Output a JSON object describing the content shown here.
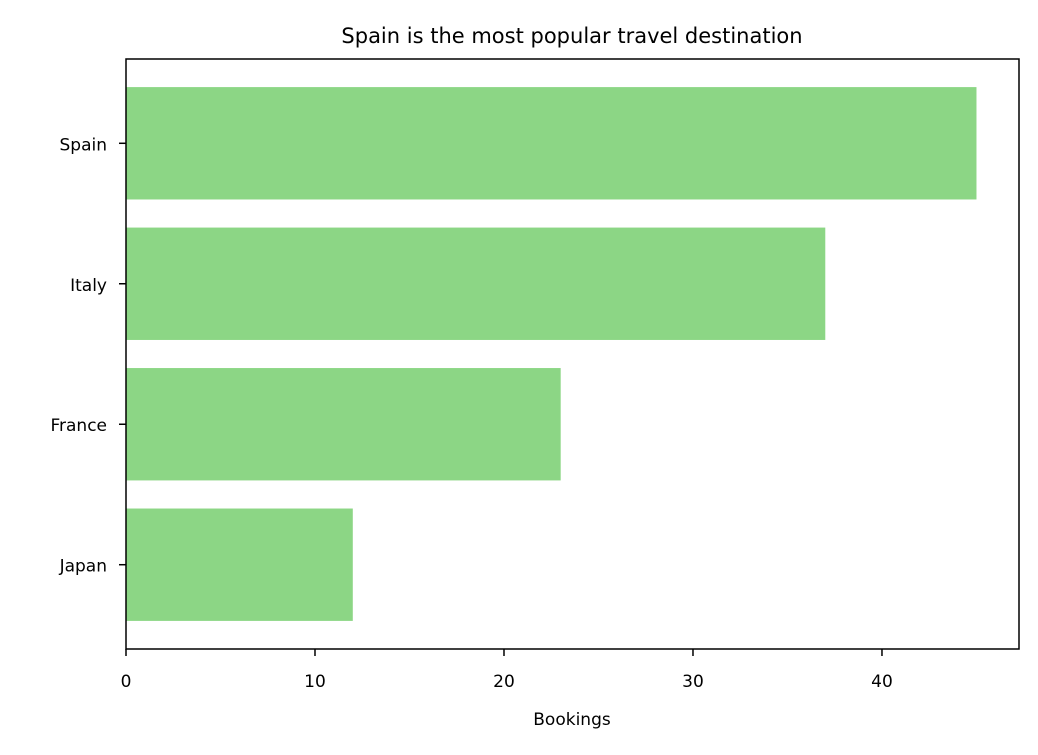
{
  "chart_data": {
    "type": "bar",
    "orientation": "horizontal",
    "title": "Spain is the most popular travel destination",
    "xlabel": "Bookings",
    "ylabel": "",
    "categories": [
      "Spain",
      "Italy",
      "France",
      "Japan"
    ],
    "values": [
      45,
      37,
      23,
      12
    ],
    "xlim": [
      0,
      47.25
    ],
    "xticks": [
      0,
      10,
      20,
      30,
      40
    ],
    "grid": false,
    "colors": {
      "bar": "#8cd685",
      "axis": "#000000",
      "background": "#ffffff"
    }
  }
}
